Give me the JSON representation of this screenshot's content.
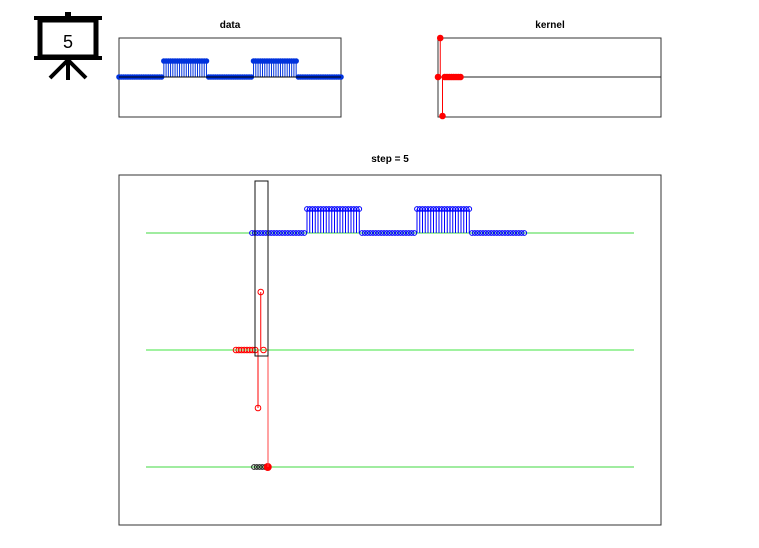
{
  "icon": {
    "name": "presentation-board-icon",
    "label": "5"
  },
  "data_plot": {
    "title": "data",
    "values": [
      0,
      0,
      0,
      0,
      0,
      0,
      0,
      0,
      0,
      0,
      0,
      0,
      0,
      0,
      0,
      0,
      0,
      0,
      0,
      0,
      1,
      1,
      1,
      1,
      1,
      1,
      1,
      1,
      1,
      1,
      1,
      1,
      1,
      1,
      1,
      1,
      1,
      1,
      1,
      1,
      0,
      0,
      0,
      0,
      0,
      0,
      0,
      0,
      0,
      0,
      0,
      0,
      0,
      0,
      0,
      0,
      0,
      0,
      0,
      0,
      1,
      1,
      1,
      1,
      1,
      1,
      1,
      1,
      1,
      1,
      1,
      1,
      1,
      1,
      1,
      1,
      1,
      1,
      1,
      1,
      0,
      0,
      0,
      0,
      0,
      0,
      0,
      0,
      0,
      0,
      0,
      0,
      0,
      0,
      0,
      0,
      0,
      0,
      0,
      0
    ],
    "color": "#0033dd"
  },
  "kernel_plot": {
    "title": "kernel",
    "values": [
      0,
      1,
      -1,
      0,
      0,
      0,
      0,
      0,
      0,
      0,
      0
    ],
    "color": "#ff0000"
  },
  "main_plot": {
    "title": "step = 5",
    "step": 5,
    "output_values": [
      0,
      0,
      0,
      0,
      0,
      0
    ],
    "data_color": "#0000ff",
    "kernel_color": "#ff0000",
    "axis_line_color": "#00dd00"
  }
}
